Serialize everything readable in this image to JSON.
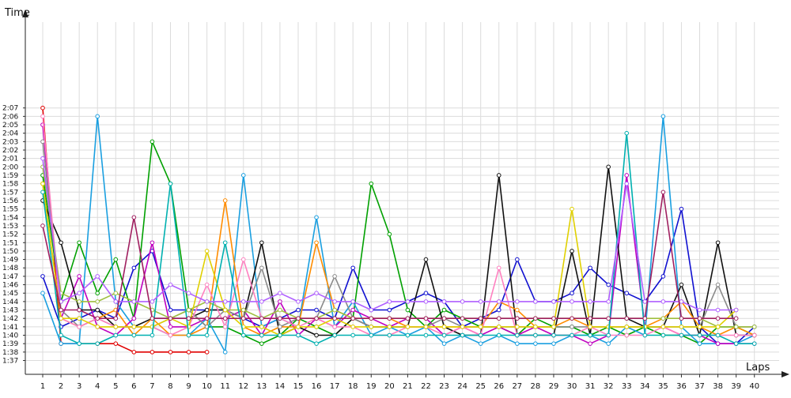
{
  "chart_data": {
    "type": "line",
    "title": "",
    "xlabel": "Laps",
    "ylabel": "Time",
    "xlim": [
      1,
      40
    ],
    "ylim": [
      "1:37",
      "2:08"
    ],
    "grid": true,
    "legend": "none",
    "x_ticks": [
      "1",
      "2",
      "3",
      "4",
      "5",
      "6",
      "7",
      "8",
      "9",
      "10",
      "11",
      "12",
      "13",
      "14",
      "15",
      "16",
      "17",
      "18",
      "19",
      "20",
      "21",
      "22",
      "23",
      "24",
      "25",
      "26",
      "27",
      "28",
      "29",
      "30",
      "31",
      "32",
      "33",
      "34",
      "35",
      "36",
      "37",
      "38",
      "39",
      "40"
    ],
    "y_ticks": [
      "1:37",
      "1:38",
      "1:39",
      "1:40",
      "1:41",
      "1:42",
      "1:43",
      "1:44",
      "1:45",
      "1:46",
      "1:47",
      "1:48",
      "1:49",
      "1:50",
      "1:51",
      "1:52",
      "1:53",
      "1:54",
      "1:55",
      "1:56",
      "1:57",
      "1:58",
      "1:59",
      "2:00",
      "2:01",
      "2:02",
      "2:03",
      "2:04",
      "2:05",
      "2:06",
      "2:07"
    ],
    "series": [
      {
        "color": "#e00000",
        "values": [
          "2:07",
          "1:39",
          "1:39",
          "1:39",
          "1:39",
          "1:38",
          "1:38",
          "1:38",
          "1:38",
          "1:38",
          null,
          null,
          null,
          null,
          null,
          null,
          null,
          null,
          null,
          null,
          null,
          null,
          null,
          null,
          null,
          null,
          null,
          null,
          null,
          null,
          null,
          null,
          null,
          null,
          null,
          null,
          null,
          null,
          null,
          null
        ]
      },
      {
        "color": "#1010d0",
        "values": [
          "1:47",
          "1:41",
          "1:42",
          "1:43",
          "1:42",
          "1:48",
          "1:50",
          "1:43",
          "1:43",
          "1:43",
          "1:43",
          "1:42",
          "1:41",
          "1:42",
          "1:43",
          "1:43",
          "1:42",
          "1:48",
          "1:43",
          "1:43",
          "1:44",
          "1:45",
          "1:44",
          "1:41",
          "1:42",
          "1:43",
          "1:49",
          "1:44",
          "1:44",
          "1:45",
          "1:48",
          "1:46",
          "1:45",
          "1:44",
          "1:47",
          "1:55",
          "1:41",
          "1:39",
          "1:39",
          "1:41"
        ]
      },
      {
        "color": "#00a000",
        "values": [
          "1:59",
          "1:44",
          "1:51",
          "1:45",
          "1:49",
          "1:42",
          "2:03",
          "1:58",
          "1:43",
          "1:41",
          "1:41",
          "1:40",
          "1:39",
          "1:40",
          "1:42",
          "1:41",
          "1:40",
          "1:42",
          "1:58",
          "1:52",
          "1:43",
          "1:41",
          "1:43",
          "1:42",
          "1:41",
          "1:41",
          "1:40",
          "1:42",
          "1:41",
          "1:41",
          "1:40",
          "1:41",
          "1:40",
          "1:41",
          "1:40",
          "1:40",
          "1:39",
          "1:41",
          "1:41",
          "1:40"
        ]
      },
      {
        "color": "#1a9fe0",
        "values": [
          "1:45",
          "1:39",
          "1:39",
          "2:06",
          "1:44",
          "1:41",
          "1:41",
          "1:40",
          "1:40",
          "1:42",
          "1:38",
          "1:59",
          "1:41",
          "1:42",
          "1:41",
          "1:54",
          "1:41",
          "1:44",
          "1:40",
          "1:41",
          "1:40",
          "1:41",
          "1:39",
          "1:40",
          "1:39",
          "1:40",
          "1:39",
          "1:39",
          "1:39",
          "1:40",
          "1:40",
          "1:39",
          "1:41",
          "1:40",
          "2:06",
          "1:41",
          "1:39",
          "1:39",
          "1:39",
          "1:40"
        ]
      },
      {
        "color": "#c000c0",
        "values": [
          "2:05",
          "1:42",
          "1:47",
          "1:41",
          "1:40",
          "1:42",
          "1:51",
          "1:41",
          "1:41",
          "1:42",
          "1:42",
          "1:43",
          "1:40",
          "1:44",
          "1:40",
          "1:42",
          "1:41",
          "1:43",
          "1:42",
          "1:41",
          "1:42",
          "1:42",
          "1:40",
          "1:41",
          "1:40",
          "1:41",
          "1:40",
          "1:41",
          "1:40",
          "1:40",
          "1:39",
          "1:40",
          "1:59",
          "1:41",
          "1:41",
          "1:40",
          "1:40",
          "1:39",
          "1:39",
          "1:39"
        ]
      },
      {
        "color": "#111111",
        "values": [
          "1:56",
          "1:51",
          "1:43",
          "1:43",
          "1:41",
          "1:41",
          "1:42",
          "1:42",
          "1:42",
          "1:43",
          "1:43",
          "1:42",
          "1:51",
          "1:40",
          "1:41",
          "1:40",
          "1:40",
          "1:42",
          "1:41",
          "1:41",
          "1:41",
          "1:49",
          "1:41",
          "1:40",
          "1:40",
          "1:59",
          "1:40",
          "1:40",
          "1:40",
          "1:50",
          "1:40",
          "2:00",
          "1:42",
          "1:41",
          "1:41",
          "1:46",
          "1:40",
          "1:51",
          "1:40",
          "1:40"
        ]
      },
      {
        "color": "#ff8c00",
        "values": [
          "1:58",
          "1:42",
          "1:41",
          "1:42",
          "1:43",
          "1:40",
          "1:42",
          "1:40",
          "1:40",
          "1:41",
          "1:56",
          "1:41",
          "1:40",
          "1:41",
          "1:41",
          "1:51",
          "1:43",
          "1:42",
          "1:42",
          "1:42",
          "1:41",
          "1:41",
          "1:41",
          "1:41",
          "1:41",
          "1:44",
          "1:43",
          "1:41",
          "1:41",
          "1:42",
          "1:41",
          "1:41",
          "1:41",
          "1:41",
          "1:42",
          "1:44",
          "1:41",
          "1:40",
          "1:41",
          "1:40"
        ]
      },
      {
        "color": "#8a8a8a",
        "values": [
          "2:03",
          "1:43",
          "1:41",
          "1:42",
          "1:41",
          "1:41",
          "1:41",
          "1:42",
          "1:43",
          "1:41",
          "1:43",
          "1:42",
          "1:48",
          "1:41",
          "1:42",
          "1:42",
          "1:47",
          "1:42",
          "1:41",
          "1:41",
          "1:41",
          "1:41",
          "1:42",
          "1:41",
          "1:41",
          "1:41",
          "1:41",
          "1:41",
          "1:41",
          "1:41",
          "1:41",
          "1:41",
          "1:41",
          "1:41",
          "1:41",
          "1:41",
          "1:41",
          "1:46",
          "1:41",
          "1:41"
        ]
      },
      {
        "color": "#ff80c0",
        "values": [
          "2:06",
          "1:42",
          "1:41",
          "1:42",
          "1:41",
          "1:41",
          "1:41",
          "1:40",
          "1:41",
          "1:46",
          "1:41",
          "1:49",
          "1:42",
          "1:42",
          "1:41",
          "1:42",
          "1:41",
          "1:41",
          "1:40",
          "1:40",
          "1:41",
          "1:41",
          "1:40",
          "1:41",
          "1:40",
          "1:48",
          "1:40",
          "1:40",
          "1:40",
          "1:40",
          "1:41",
          "1:40",
          "1:40",
          "1:40",
          "1:41",
          "1:40",
          "1:40",
          "1:40",
          "1:40",
          "1:40"
        ]
      },
      {
        "color": "#9fbf3f",
        "values": [
          "2:00",
          "1:45",
          "1:44",
          "1:44",
          "1:45",
          "1:44",
          "1:43",
          "1:42",
          "1:43",
          "1:44",
          "1:43",
          "1:43",
          "1:42",
          "1:43",
          "1:42",
          "1:42",
          "1:43",
          "1:42",
          "1:42",
          "1:42",
          "1:42",
          "1:42",
          "1:42",
          "1:42",
          "1:42",
          "1:42",
          "1:42",
          "1:42",
          "1:42",
          "1:42",
          "1:42",
          "1:42",
          "1:42",
          "1:42",
          "1:42",
          "1:42",
          "1:42",
          "1:41",
          "1:41",
          "1:41"
        ]
      },
      {
        "color": "#e0d000",
        "values": [
          "1:58",
          "1:42",
          "1:42",
          "1:41",
          "1:41",
          "1:41",
          "1:41",
          "1:42",
          "1:41",
          "1:50",
          "1:43",
          "1:41",
          "1:41",
          "1:40",
          "1:41",
          "1:41",
          "1:42",
          "1:41",
          "1:41",
          "1:41",
          "1:41",
          "1:41",
          "1:41",
          "1:41",
          "1:41",
          "1:41",
          "1:41",
          "1:41",
          "1:41",
          "1:55",
          "1:41",
          "1:41",
          "1:41",
          "1:41",
          "1:41",
          "1:41",
          "1:41",
          "1:41",
          "1:43",
          null
        ]
      },
      {
        "color": "#00b0b0",
        "values": [
          "1:57",
          "1:40",
          "1:39",
          "1:39",
          "1:40",
          "1:40",
          "1:40",
          "1:58",
          "1:40",
          "1:40",
          "1:51",
          "1:40",
          "1:40",
          "1:40",
          "1:40",
          "1:39",
          "1:40",
          "1:40",
          "1:40",
          "1:40",
          "1:40",
          "1:40",
          "1:40",
          "1:40",
          "1:40",
          "1:40",
          "1:40",
          "1:40",
          "1:40",
          "1:40",
          "1:40",
          "1:40",
          "2:04",
          "1:40",
          "1:40",
          "1:40",
          "1:40",
          "1:40",
          "1:39",
          "1:39"
        ]
      },
      {
        "color": "#b060ff",
        "values": [
          "2:01",
          "1:44",
          "1:45",
          "1:47",
          "1:44",
          "1:44",
          "1:44",
          "1:46",
          "1:45",
          "1:44",
          "1:44",
          "1:44",
          "1:44",
          "1:45",
          "1:44",
          "1:45",
          "1:44",
          "1:44",
          "1:43",
          "1:44",
          "1:44",
          "1:44",
          "1:44",
          "1:44",
          "1:44",
          "1:44",
          "1:44",
          "1:44",
          "1:44",
          "1:44",
          "1:44",
          "1:44",
          "1:58",
          "1:44",
          "1:44",
          "1:44",
          "1:43",
          "1:43",
          "1:43",
          null
        ]
      },
      {
        "color": "#a02060",
        "values": [
          "1:53",
          "1:43",
          "1:43",
          "1:42",
          "1:42",
          "1:54",
          "1:42",
          "1:42",
          "1:42",
          "1:42",
          "1:42",
          "1:42",
          "1:42",
          "1:42",
          "1:42",
          "1:42",
          "1:42",
          "1:42",
          "1:42",
          "1:42",
          "1:42",
          "1:42",
          "1:42",
          "1:42",
          "1:42",
          "1:42",
          "1:42",
          "1:42",
          "1:42",
          "1:42",
          "1:42",
          "1:42",
          "1:42",
          "1:42",
          "1:57",
          "1:42",
          "1:42",
          "1:42",
          "1:42",
          null
        ]
      }
    ]
  }
}
